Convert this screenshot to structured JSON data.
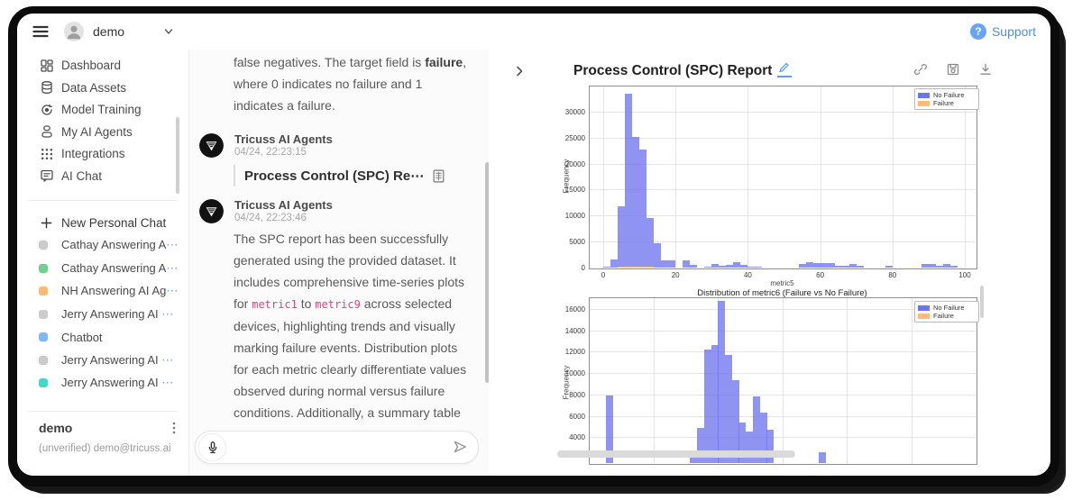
{
  "topbar": {
    "user": "demo",
    "support_label": "Support"
  },
  "sidebar": {
    "nav": [
      {
        "label": "Dashboard",
        "icon": "dashboard-icon"
      },
      {
        "label": "Data Assets",
        "icon": "data-assets-icon"
      },
      {
        "label": "Model Training",
        "icon": "model-training-icon"
      },
      {
        "label": "My AI Agents",
        "icon": "agents-icon"
      },
      {
        "label": "Integrations",
        "icon": "integrations-icon"
      },
      {
        "label": "AI Chat",
        "icon": "ai-chat-icon"
      }
    ],
    "new_chat_label": "New Personal Chat",
    "chats": [
      {
        "label": "Cathay Answering A",
        "truncated": true,
        "color": "#cbcbcb"
      },
      {
        "label": "Cathay Answering A",
        "truncated": true,
        "color": "#72cf8e"
      },
      {
        "label": "NH Answering AI Ag",
        "truncated": true,
        "color": "#ffb870"
      },
      {
        "label": "Jerry Answering AI ",
        "truncated": true,
        "color": "#cbcbcb"
      },
      {
        "label": "Chatbot",
        "truncated": false,
        "color": "#7cb9f6"
      },
      {
        "label": "Jerry Answering AI ",
        "truncated": true,
        "color": "#cbcbcb"
      },
      {
        "label": "Jerry Answering AI ",
        "truncated": true,
        "color": "#3fd9c8"
      }
    ],
    "footer": {
      "name": "demo",
      "email": "(unverified) demo@tricuss.ai"
    }
  },
  "chat": {
    "messages": [
      {
        "kind": "partial-text",
        "lines": [
          [
            {
              "t": "false negatives. The target field is "
            },
            {
              "t": "failure",
              "bold": true
            },
            {
              "t": ","
            }
          ],
          [
            {
              "t": "where 0 indicates no failure and 1"
            }
          ],
          [
            {
              "t": "indicates a failure."
            }
          ]
        ]
      },
      {
        "kind": "agent-attachment",
        "sender": "Tricuss AI Agents",
        "time": "04/24, 22:23:15",
        "attachment_title": "Process Control (SPC) Re⋯"
      },
      {
        "kind": "agent-text",
        "sender": "Tricuss AI Agents",
        "time": "04/24, 22:23:46",
        "lines": [
          [
            {
              "t": "The SPC report has been successfully"
            }
          ],
          [
            {
              "t": "generated using the provided dataset. It"
            }
          ],
          [
            {
              "t": "includes comprehensive time-series plots"
            }
          ],
          [
            {
              "t": "for "
            },
            {
              "t": "metric1",
              "code": true
            },
            {
              "t": " to "
            },
            {
              "t": "metric9",
              "code": true
            },
            {
              "t": " across selected"
            }
          ],
          [
            {
              "t": "devices, highlighting trends and visually"
            }
          ],
          [
            {
              "t": "marking failure events. Distribution plots"
            }
          ],
          [
            {
              "t": "for each metric clearly differentiate values"
            }
          ],
          [
            {
              "t": "observed during normal versus failure"
            }
          ],
          [
            {
              "t": "conditions. Additionally, a summary table"
            }
          ]
        ]
      }
    ],
    "input": {
      "value": "",
      "placeholder": ""
    }
  },
  "report": {
    "title": "Process Control (SPC) Report"
  },
  "chart_data": [
    {
      "type": "histogram",
      "title_visible": false,
      "xlabel": "metric5",
      "ylabel": "Frequency",
      "legend": [
        {
          "label": "No Failure",
          "color": "#6d74ef"
        },
        {
          "label": "Failure",
          "color": "#ffbb77"
        }
      ],
      "xlim": [
        -4,
        103
      ],
      "ylim": [
        0,
        35000
      ],
      "xticks": [
        0,
        20,
        40,
        60,
        80,
        100
      ],
      "yticks": [
        0,
        5000,
        10000,
        15000,
        20000,
        25000,
        30000
      ],
      "bin_width": 2,
      "series": [
        {
          "name": "No Failure",
          "bars": [
            [
              0,
              250
            ],
            [
              2,
              1600
            ],
            [
              4,
              11800
            ],
            [
              6,
              33500
            ],
            [
              8,
              25100
            ],
            [
              10,
              22700
            ],
            [
              12,
              9500
            ],
            [
              14,
              4600
            ],
            [
              16,
              1300
            ],
            [
              18,
              1300
            ],
            [
              22,
              1300
            ],
            [
              24,
              500
            ],
            [
              28,
              150
            ],
            [
              30,
              650
            ],
            [
              32,
              350
            ],
            [
              34,
              550
            ],
            [
              36,
              1050
            ],
            [
              38,
              450
            ],
            [
              40,
              220
            ],
            [
              42,
              130
            ],
            [
              54,
              650
            ],
            [
              56,
              1050
            ],
            [
              58,
              850
            ],
            [
              60,
              900
            ],
            [
              62,
              950
            ],
            [
              64,
              420
            ],
            [
              66,
              380
            ],
            [
              68,
              650
            ],
            [
              70,
              320
            ],
            [
              78,
              260
            ],
            [
              88,
              650
            ],
            [
              90,
              650
            ],
            [
              92,
              420
            ],
            [
              94,
              700
            ],
            [
              96,
              320
            ]
          ]
        },
        {
          "name": "Failure",
          "bars": [
            [
              4,
              120
            ],
            [
              6,
              180
            ],
            [
              8,
              160
            ],
            [
              10,
              140
            ],
            [
              12,
              110
            ]
          ]
        }
      ]
    },
    {
      "type": "histogram",
      "title": "Distribution of metric6 (Failure vs No Failure)",
      "ylabel": "Frequency",
      "legend": [
        {
          "label": "No Failure",
          "color": "#6d74ef"
        },
        {
          "label": "Failure",
          "color": "#ffbb77"
        }
      ],
      "yticks": [
        4000,
        6000,
        8000,
        10000,
        12000,
        14000,
        16000
      ],
      "x_axis_cropped": true,
      "bars_x_percent": [
        [
          4.4,
          7900
        ],
        [
          26.2,
          2600
        ],
        [
          28.0,
          4900
        ],
        [
          29.8,
          12200
        ],
        [
          31.6,
          12600
        ],
        [
          33.4,
          16800
        ],
        [
          35.2,
          11700
        ],
        [
          37.0,
          9300
        ],
        [
          38.8,
          5400
        ],
        [
          40.6,
          4500
        ],
        [
          42.4,
          7800
        ],
        [
          44.2,
          6300
        ],
        [
          46.0,
          4700
        ],
        [
          59.5,
          2600
        ]
      ]
    }
  ]
}
